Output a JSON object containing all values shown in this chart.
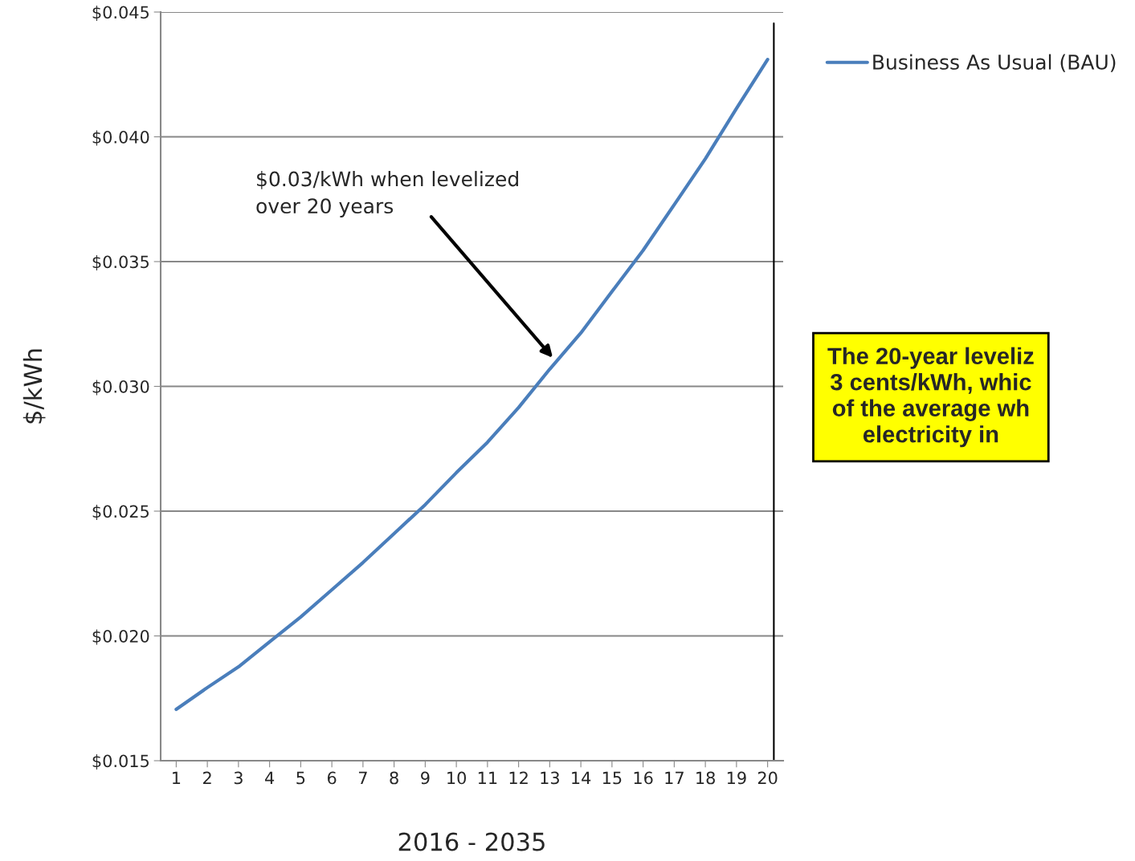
{
  "chart_data": {
    "type": "line",
    "xlabel": "2016 - 2035",
    "ylabel": "$/kWh",
    "x": [
      1,
      2,
      3,
      4,
      5,
      6,
      7,
      8,
      9,
      10,
      11,
      12,
      13,
      14,
      15,
      16,
      17,
      18,
      19,
      20
    ],
    "series": [
      {
        "name": "Business As Usual (BAU)",
        "color": "#4a7ebb",
        "values": [
          0.01706,
          0.01793,
          0.01876,
          0.01976,
          0.02076,
          0.02185,
          0.02294,
          0.0241,
          0.02526,
          0.02654,
          0.02776,
          0.02915,
          0.03069,
          0.03214,
          0.0338,
          0.03545,
          0.03728,
          0.03912,
          0.04114,
          0.0431
        ]
      }
    ],
    "xlim": [
      0.5,
      20.5
    ],
    "xticks": [
      1,
      2,
      3,
      4,
      5,
      6,
      7,
      8,
      9,
      10,
      11,
      12,
      13,
      14,
      15,
      16,
      17,
      18,
      19,
      20
    ],
    "ylim": [
      0.015,
      0.045
    ],
    "yticks": [
      {
        "value": 0.015,
        "label": "$0.015"
      },
      {
        "value": 0.02,
        "label": "$0.020"
      },
      {
        "value": 0.025,
        "label": "$0.025"
      },
      {
        "value": 0.03,
        "label": "$0.030"
      },
      {
        "value": 0.035,
        "label": "$0.035"
      },
      {
        "value": 0.04,
        "label": "$0.040"
      },
      {
        "value": 0.045,
        "label": "$0.045"
      }
    ],
    "ref_lines": [
      {
        "axis": "x",
        "value": 20.2,
        "color": "#000000"
      }
    ],
    "annotations": [
      "$0.03/kWh when levelized\nover 20 years",
      "The 20-year leveliz\n3 cents/kWh, whic\nof the average wh\nelectricity in"
    ],
    "grid": "y",
    "legend": "top right",
    "marker": "none",
    "line_style": "solid"
  }
}
